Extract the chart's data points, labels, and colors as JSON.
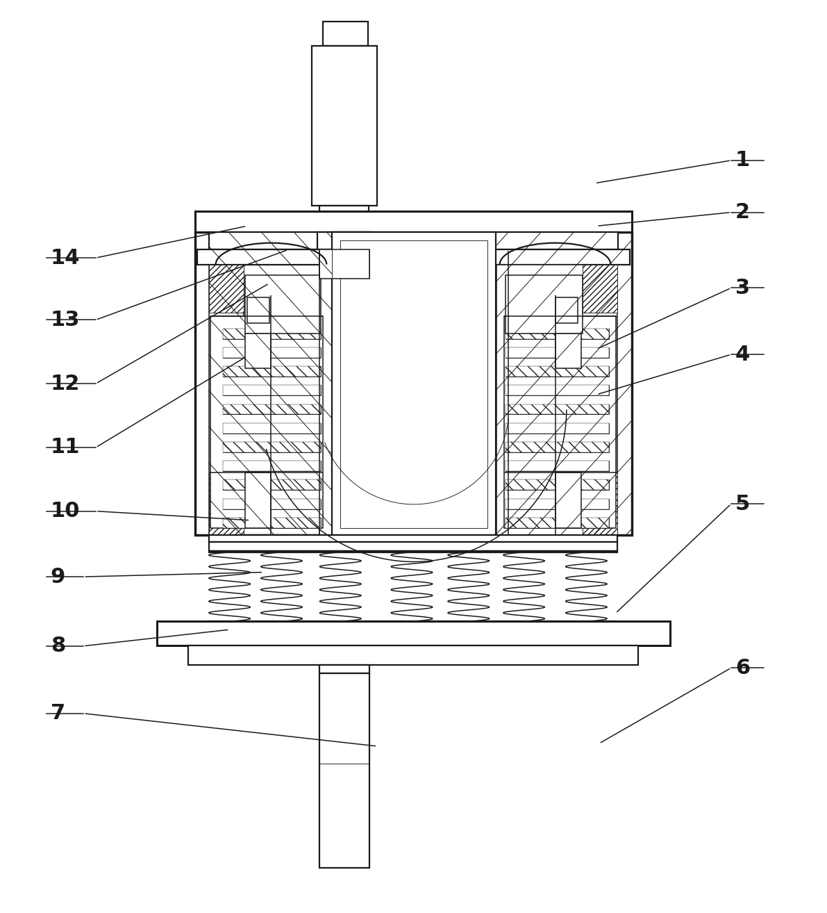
{
  "background_color": "#ffffff",
  "lc": "#1a1a1a",
  "fig_width": 11.91,
  "fig_height": 13.14,
  "lw_outer": 2.2,
  "lw_main": 1.6,
  "lw_med": 1.1,
  "lw_thin": 0.65,
  "label_fontsize": 22,
  "right_labels": {
    "1": [
      0.885,
      0.825,
      0.72,
      0.8
    ],
    "2": [
      0.885,
      0.768,
      0.722,
      0.753
    ],
    "3": [
      0.885,
      0.685,
      0.722,
      0.618
    ],
    "4": [
      0.885,
      0.612,
      0.722,
      0.568
    ],
    "5": [
      0.885,
      0.448,
      0.745,
      0.328
    ],
    "6": [
      0.885,
      0.268,
      0.725,
      0.185
    ]
  },
  "left_labels": {
    "14": [
      0.06,
      0.718,
      0.298,
      0.753
    ],
    "13": [
      0.06,
      0.65,
      0.348,
      0.727
    ],
    "12": [
      0.06,
      0.58,
      0.325,
      0.69
    ],
    "11": [
      0.06,
      0.51,
      0.298,
      0.61
    ],
    "10": [
      0.06,
      0.44,
      0.302,
      0.43
    ],
    "9": [
      0.06,
      0.368,
      0.318,
      0.373
    ],
    "8": [
      0.06,
      0.292,
      0.277,
      0.31
    ],
    "7": [
      0.06,
      0.218,
      0.456,
      0.182
    ]
  }
}
